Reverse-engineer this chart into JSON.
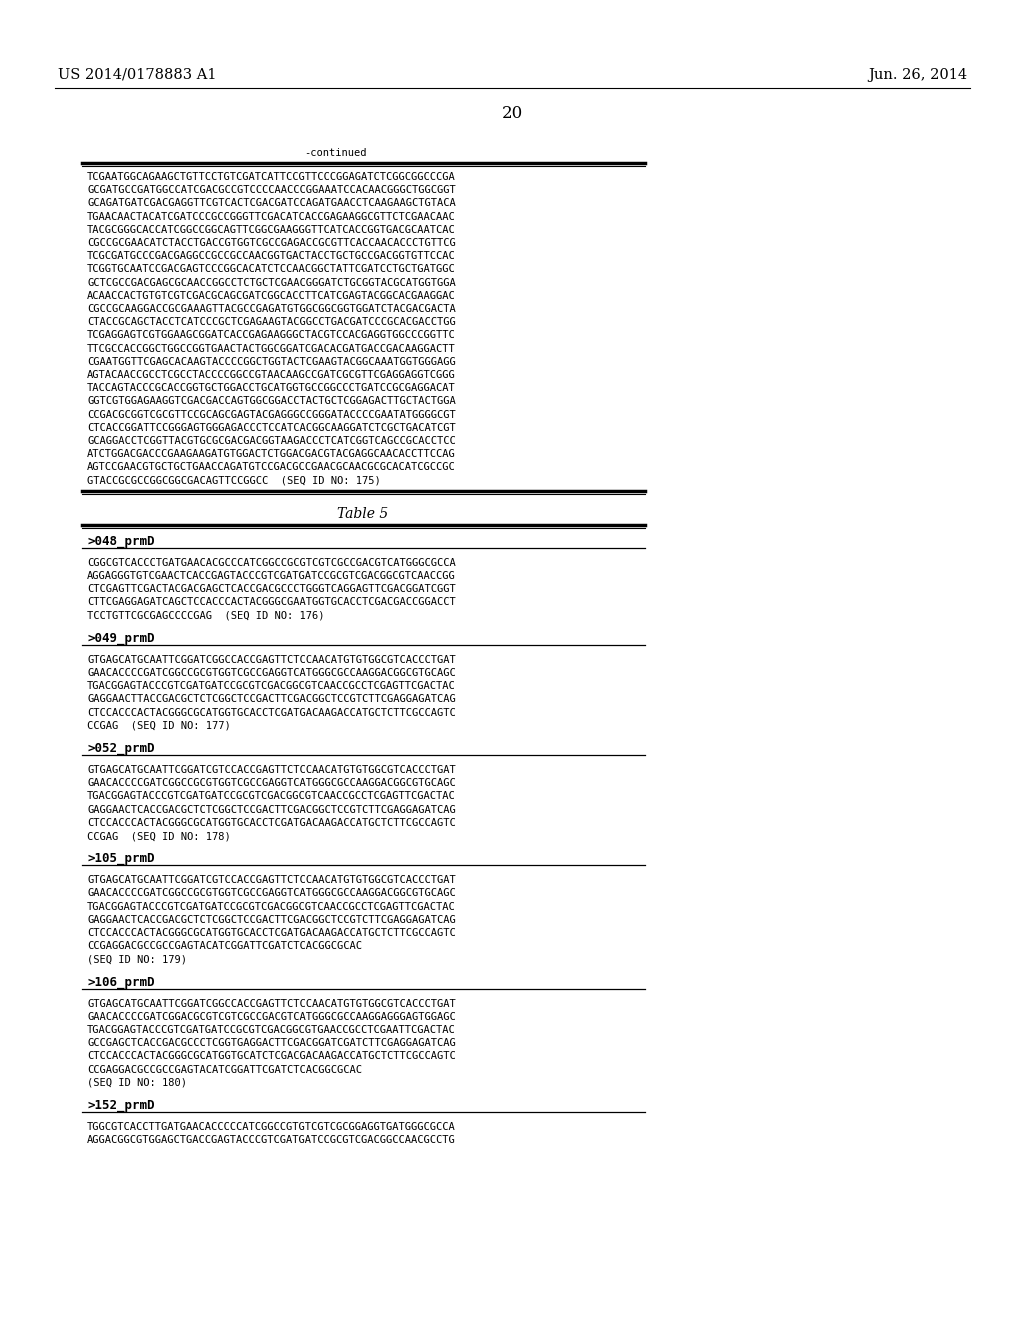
{
  "header_left": "US 2014/0178883 A1",
  "header_right": "Jun. 26, 2014",
  "page_number": "20",
  "continued_label": "-continued",
  "background_color": "#ffffff",
  "text_color": "#000000",
  "font_size_header": 10.5,
  "font_size_page_num": 12,
  "font_size_mono": 7.5,
  "font_size_section_label": 9.0,
  "font_size_table": 10,
  "continued_block_lines": [
    "TCGAATGGCAGAAGCTGTTCCTGTCGATCATTCCGTTCCCGGAGATCTCGGCGGCCCGA",
    "GCGATGCCGATGGCCATCGACGCCGTCCCCAACCCGGAAATCCACAACGGGCTGGCGGT",
    "GCAGATGATCGACGAGGTTCGTCACTCGACGATCCAGATGAACCTCAAGAAGCTGTACA",
    "TGAACAACTACATCGATCCCGCCGGGTTCGACATCACCGAGAAGGCGTTCTCGAACAAC",
    "TACGCGGGCACCATCGGCCGGCAGTTCGGCGAAGGGTTCATCACCGGTGACGCAATCAC",
    "CGCCGCGAACATCTACCTGACCGTGGTCGCCGAGACCGCGTTCACCAACACCCTGTTCG",
    "TCGCGATGCCCGACGAGGCCGCCGCCAACGGTGACTACCTGCTGCCGACGGTGTTCCAC",
    "TCGGTGCAATCCGACGAGTCCCGGCACATCTCCAACGGCTATTCGATCCTGCTGATGGC",
    "GCTCGCCGACGAGCGCAACCGGCCTCTGCTCGAACGGGATCTGCGGTACGCATGGTGGA",
    "ACAACCACTGTGTCGTCGACGCAGCGATCGGCACCTTCATCGAGTACGGCACGAAGGAC",
    "CGCCGCAAGGACCGCGAAAGTTACGCCGAGATGTGGCGGCGGTGGATCTACGACGACTA",
    "CTACCGCAGCTACCTCATCCCGCTCGAGAAGTACGGCCTGACGATCCCGCACGACCTGG",
    "TCGAGGAGTCGTGGAAGCGGATCACCGAGAAGGGCTACGTCCACGAGGTGGCCCGGTTC",
    "TTCGCCACCGGCTGGCCGGTGAACTACTGGCGGATCGACACGATGACCGACAAGGACTT",
    "CGAATGGTTCGAGCACAAGTACCCCGGCTGGTACTCGAAGTACGGCAAATGGTGGGAGG",
    "AGTACAACCGCCTCGCCTACCCCGGCCGTAACAAGCCGATCGCGTTCGAGGAGGTCGGG",
    "TACCAGTACCCGCACCGGTGCTGGACCTGCATGGTGCCGGCCCTGATCCGCGAGGACAT",
    "GGTCGTGGAGAAGGTCGACGACCAGTGGCGGACCTACTGCTCGGAGACTTGCTACTGGA",
    "CCGACGCGGTCGCGTTCCGCAGCGAGTACGAGGGCCGGGATACCCCGAATATGGGGCGT",
    "CTCACCGGATTCCGGGAGTGGGAGACCCTCCATCACGGCAAGGATCTCGCTGACATCGT",
    "GCAGGACCTCGGTTACGTGCGCGACGACGGTAAGACCCTCATCGGTCAGCCGCACCTCC",
    "ATCTGGACGACCCGAAGAAGATGTGGACTCTGGACGACGTACGAGGCAACACCTTCCAG",
    "AGTCCGAACGTGCTGCTGAACCAGATGTCCGACGCCGAACGCAACGCGCACATCGCCGC",
    "GTACCGCGCCGGCGGCGACAGTTCCGGCC  (SEQ ID NO: 175)"
  ],
  "table5_label": "Table 5",
  "sections": [
    {
      "label": ">048_prmD",
      "lines": [
        "CGGCGTCACCCTGATGAACACGCCCATCGGCCGCGTCGTCGCCGACGTCATGGGCGCCA",
        "AGGAGGGTGTCGAACTCACCGAGTACCCGTCGATGATCCGCGTCGACGGCGTCAACCGG",
        "CTCGAGTTCGACTACGACGAGCTCACCGACGCCCTGGGTCAGGAGTTCGACGGATCGGT",
        "CTTCGAGGAGATCAGCTCCACCCACTACGGGCGAATGGTGCACCTCGACGACCGGACCT",
        "TCCTGTTCGCGAGCCCCGAG  (SEQ ID NO: 176)"
      ]
    },
    {
      "label": ">049_prmD",
      "lines": [
        "GTGAGCATGCAATTCGGATCGGCCACCGAGTTCTCCAACATGTGTGGCGTCACCCTGAT",
        "GAACACCCCGATCGGCCGCGTGGTCGCCGAGGTCATGGGCGCCAAGGACGGCGTGCAGC",
        "TGACGGAGTACCCGTCGATGATCCGCGTCGACGGCGTCAACCGCCTCGAGTTCGACTAC",
        "GAGGAACTTACCGACGCTCTCGGCTCCGACTTCGACGGCTCCGTCTTCGAGGAGATCAG",
        "CTCCACCCACTACGGGCGCATGGTGCACCTCGATGACAAGACCATGCTCTTCGCCAGTC",
        "CCGAG  (SEQ ID NO: 177)"
      ]
    },
    {
      "label": ">052_prmD",
      "lines": [
        "GTGAGCATGCAATTCGGATCGTCCACCGAGTTCTCCAACATGTGTGGCGTCACCCTGAT",
        "GAACACCCCGATCGGCCGCGTGGTCGCCGAGGTCATGGGCGCCAAGGACGGCGTGCAGC",
        "TGACGGAGTACCCGTCGATGATCCGCGTCGACGGCGTCAACCGCCTCGAGTTCGACTAC",
        "GAGGAACTCACCGACGCTCTCGGCTCCGACTTCGACGGCTCCGTCTTCGAGGAGATCAG",
        "CTCCACCCACTACGGGCGCATGGTGCACCTCGATGACAAGACCATGCTCTTCGCCAGTC",
        "CCGAG  (SEQ ID NO: 178)"
      ]
    },
    {
      "label": ">105_prmD",
      "lines": [
        "GTGAGCATGCAATTCGGATCGTCCACCGAGTTCTCCAACATGTGTGGCGTCACCCTGAT",
        "GAACACCCCGATCGGCCGCGTGGTCGCCGAGGTCATGGGCGCCAAGGACGGCGTGCAGC",
        "TGACGGAGTACCCGTCGATGATCCGCGTCGACGGCGTCAACCGCCTCGAGTTCGACTAC",
        "GAGGAACTCACCGACGCTCTCGGCTCCGACTTCGACGGCTCCGTCTTCGAGGAGATCAG",
        "CTCCACCCACTACGGGCGCATGGTGCACCTCGATGACAAGACCATGCTCTTCGCCAGTC",
        "CCGAGGACGCCGCCGAGTACATCGGATTCGATCTCACGGCGCAC",
        "(SEQ ID NO: 179)"
      ]
    },
    {
      "label": ">106_prmD",
      "lines": [
        "GTGAGCATGCAATTCGGATCGGCCACCGAGTTCTCCAACATGTGTGGCGTCACCCTGAT",
        "GAACACCCCGATCGGACGCGTCGTCGCCGACGTCATGGGCGCCAAGGAGGGAGTGGAGC",
        "TGACGGAGTACCCGTCGATGATCCGCGTCGACGGCGTGAACCGCCTCGAATTCGACTAC",
        "GCCGAGCTCACCGACGCCCTCGGTGAGGACTTCGACGGATCGATCTTCGAGGAGATCAG",
        "CTCCACCCACTACGGGCGCATGGTGCATCTCGACGACAAGACCATGCTCTTCGCCAGTC",
        "CCGAGGACGCCGCCGAGTACATCGGATTCGATCTCACGGCGCAC",
        "(SEQ ID NO: 180)"
      ]
    },
    {
      "label": ">152_prmD",
      "lines": [
        "TGGCGTCACCTTGATGAACACCCCCATCGGCCGTGTCGTCGCGGAGGTGATGGGCGCCA",
        "AGGACGGCGTGGAGCTGACCGAGTACCCGTCGATGATCCGCGTCGACGGCCAACGCCTG"
      ]
    }
  ]
}
